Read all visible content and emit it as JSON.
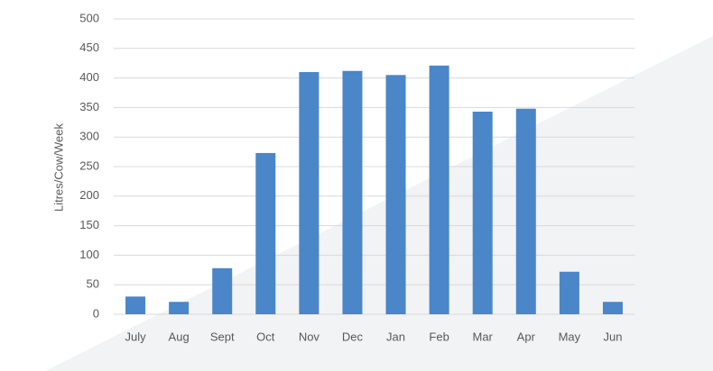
{
  "chart_data": {
    "type": "bar",
    "y_label": "Litres/Cow/Week",
    "categories": [
      "July",
      "Aug",
      "Sept",
      "Oct",
      "Nov",
      "Dec",
      "Jan",
      "Feb",
      "Mar",
      "Apr",
      "May",
      "Jun"
    ],
    "values": [
      30,
      21,
      78,
      273,
      410,
      412,
      405,
      421,
      343,
      348,
      72,
      21
    ],
    "color": "#4a86c8",
    "ylim": [
      0,
      500
    ],
    "yticks": [
      0,
      50,
      100,
      150,
      200,
      250,
      300,
      350,
      400,
      450,
      500
    ],
    "grid": true
  }
}
